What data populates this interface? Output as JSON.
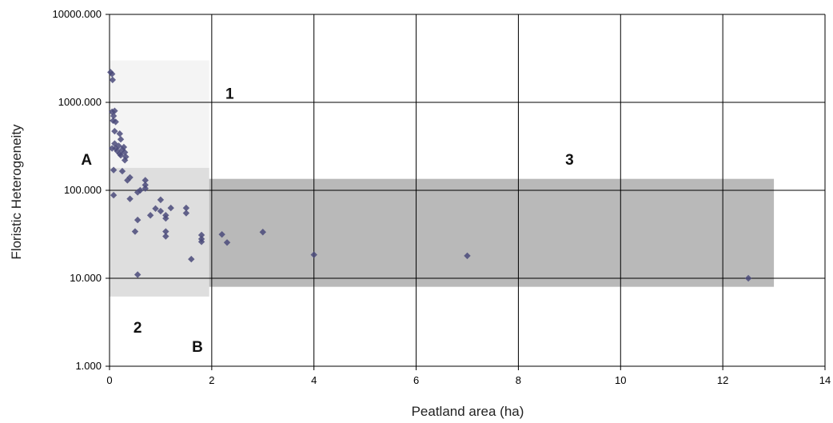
{
  "chart_data": {
    "type": "scatter",
    "xlabel": "Peatland area (ha)",
    "ylabel": "Floristic Heterogeneity",
    "xlim": [
      0,
      14
    ],
    "ylim": [
      1,
      10000
    ],
    "yscale": "log",
    "grid": true,
    "x_ticks": [
      "0",
      "2",
      "4",
      "6",
      "8",
      "10",
      "12",
      "14"
    ],
    "y_ticks": [
      "1.000",
      "10.000",
      "100.000",
      "1000.000",
      "10000.000"
    ],
    "x_tick_values": [
      0,
      2,
      4,
      6,
      8,
      10,
      12,
      14
    ],
    "y_tick_values": [
      1,
      10,
      100,
      1000,
      10000
    ],
    "marker_color": "#4a4a7a",
    "regions": [
      {
        "x": [
          0,
          1.95
        ],
        "y": [
          180,
          3000
        ],
        "fill": "#f4f4f4"
      },
      {
        "x": [
          0,
          1.95
        ],
        "y": [
          6.2,
          180
        ],
        "fill": "#dedede"
      },
      {
        "x": [
          1.95,
          13
        ],
        "y": [
          8,
          135
        ],
        "fill": "#b9b9b9"
      }
    ],
    "annotations": [
      {
        "text": "1",
        "x": 2.35,
        "y": 1100
      },
      {
        "text": "2",
        "x": 0.55,
        "y": 2.4
      },
      {
        "text": "3",
        "x": 9.0,
        "y": 195
      },
      {
        "text": "A",
        "x": -0.45,
        "y": 195
      },
      {
        "text": "B",
        "x": 1.72,
        "y": 1.45
      }
    ],
    "points": [
      [
        0.02,
        2200
      ],
      [
        0.05,
        2100
      ],
      [
        0.06,
        1800
      ],
      [
        0.05,
        780
      ],
      [
        0.08,
        700
      ],
      [
        0.1,
        800
      ],
      [
        0.07,
        620
      ],
      [
        0.12,
        600
      ],
      [
        0.1,
        470
      ],
      [
        0.2,
        440
      ],
      [
        0.22,
        380
      ],
      [
        0.05,
        300
      ],
      [
        0.1,
        340
      ],
      [
        0.12,
        300
      ],
      [
        0.15,
        280
      ],
      [
        0.18,
        320
      ],
      [
        0.2,
        260
      ],
      [
        0.25,
        290
      ],
      [
        0.28,
        310
      ],
      [
        0.3,
        270
      ],
      [
        0.32,
        240
      ],
      [
        0.22,
        250
      ],
      [
        0.3,
        220
      ],
      [
        0.08,
        170
      ],
      [
        0.25,
        165
      ],
      [
        0.4,
        140
      ],
      [
        0.35,
        130
      ],
      [
        0.7,
        130
      ],
      [
        0.7,
        115
      ],
      [
        0.7,
        105
      ],
      [
        0.08,
        88
      ],
      [
        0.4,
        80
      ],
      [
        0.55,
        95
      ],
      [
        0.6,
        100
      ],
      [
        1.0,
        78
      ],
      [
        0.9,
        62
      ],
      [
        1.0,
        58
      ],
      [
        1.1,
        52
      ],
      [
        1.1,
        48
      ],
      [
        0.8,
        52
      ],
      [
        1.2,
        63
      ],
      [
        1.5,
        63
      ],
      [
        1.5,
        55
      ],
      [
        0.55,
        46
      ],
      [
        0.5,
        34
      ],
      [
        1.1,
        34
      ],
      [
        1.1,
        30
      ],
      [
        1.8,
        31
      ],
      [
        1.8,
        28
      ],
      [
        1.8,
        26
      ],
      [
        1.6,
        16.5
      ],
      [
        0.55,
        11
      ],
      [
        2.2,
        31.5
      ],
      [
        2.3,
        25.5
      ],
      [
        3.0,
        33.5
      ],
      [
        4.0,
        18.5
      ],
      [
        7.0,
        18
      ],
      [
        12.5,
        10
      ]
    ]
  }
}
